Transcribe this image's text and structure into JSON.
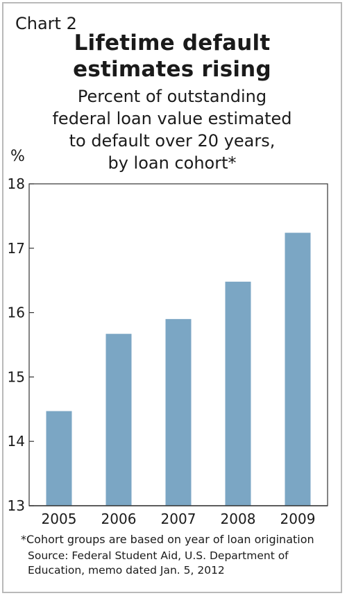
{
  "header": {
    "chart_number": "Chart 2",
    "title_lines": [
      "Lifetime default",
      "estimates rising"
    ],
    "subtitle_lines": [
      "Percent of outstanding",
      "federal loan value estimated",
      "to default over 20 years,",
      "by loan cohort*"
    ]
  },
  "unit_label": "%",
  "colors": {
    "bar": "#7ba6c4",
    "axis": "#333333",
    "frame": "#b9b9b9"
  },
  "chart_data": {
    "type": "bar",
    "title": "Lifetime default estimates rising",
    "subtitle": "Percent of outstanding federal loan value estimated to default over 20 years, by loan cohort*",
    "categories": [
      "2005",
      "2006",
      "2007",
      "2008",
      "2009"
    ],
    "values": [
      14.47,
      15.67,
      15.9,
      16.48,
      17.24
    ],
    "ylabel": "%",
    "xlabel": "",
    "ylim": [
      13,
      18
    ],
    "yticks": [
      "13",
      "14",
      "15",
      "16",
      "17",
      "18"
    ],
    "grid": false,
    "legend": "none"
  },
  "footer": {
    "footnote": "*Cohort groups are based on year of loan origination",
    "source_lines": [
      "Source: Federal Student Aid, U.S. Department of",
      "Education, memo dated Jan. 5, 2012"
    ]
  }
}
